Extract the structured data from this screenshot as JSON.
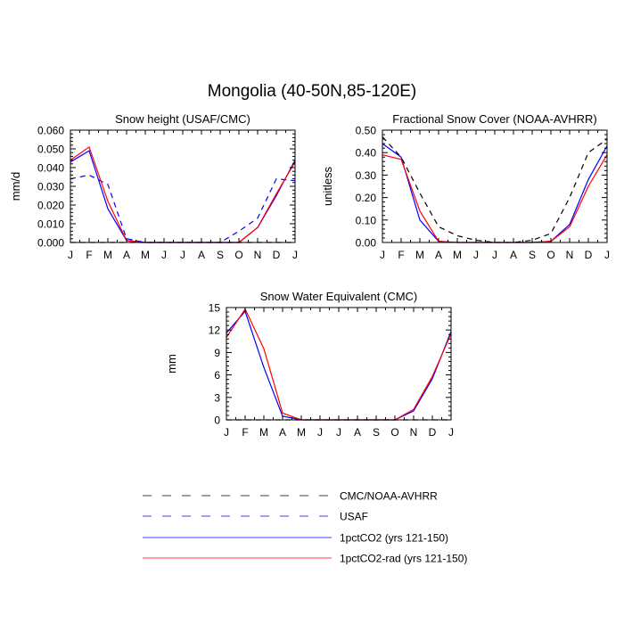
{
  "figure": {
    "title": "Mongolia (40-50N,85-120E)"
  },
  "legend": {
    "items": [
      {
        "label": "CMC/NOAA-AVHRR",
        "color": "#000000",
        "dash": "dashed"
      },
      {
        "label": "USAF",
        "color": "#0000ff",
        "dash": "dashed"
      },
      {
        "label": "1pctCO2 (yrs 121-150)",
        "color": "#0000ff",
        "dash": "solid"
      },
      {
        "label": "1pctCO2-rad (yrs 121-150)",
        "color": "#ff0000",
        "dash": "solid"
      }
    ]
  },
  "chart_data": [
    {
      "type": "line",
      "title": "Snow height (USAF/CMC)",
      "ylabel": "mm/d",
      "xlabel": "",
      "categories": [
        "J",
        "F",
        "M",
        "A",
        "M",
        "J",
        "J",
        "A",
        "S",
        "O",
        "N",
        "D",
        "J"
      ],
      "ylim": [
        0,
        0.06
      ],
      "yticks": [
        "0.000",
        "0.010",
        "0.020",
        "0.030",
        "0.040",
        "0.050",
        "0.060"
      ],
      "grid": false,
      "series": [
        {
          "name": "CMC/NOAA-AVHRR",
          "color": "#000000",
          "dash": "dashed",
          "values": [
            0,
            0,
            0,
            0,
            0,
            0,
            0,
            0,
            0,
            0,
            0,
            0,
            0
          ]
        },
        {
          "name": "USAF",
          "color": "#0000ff",
          "dash": "dashed",
          "values": [
            0.034,
            0.036,
            0.031,
            0.002,
            0.0,
            0.0,
            0.0,
            0.0,
            0.0,
            0.006,
            0.013,
            0.034,
            0.033
          ]
        },
        {
          "name": "1pctCO2 (yrs 121-150)",
          "color": "#0000ff",
          "dash": "solid",
          "values": [
            0.043,
            0.049,
            0.018,
            0.001,
            0.0,
            0.0,
            0.0,
            0.0,
            0.0,
            0.0,
            0.008,
            0.025,
            0.044
          ]
        },
        {
          "name": "1pctCO2-rad (yrs 121-150)",
          "color": "#ff0000",
          "dash": "solid",
          "values": [
            0.044,
            0.051,
            0.022,
            0.001,
            0.0,
            0.0,
            0.0,
            0.0,
            0.0,
            0.0,
            0.008,
            0.026,
            0.043
          ]
        }
      ]
    },
    {
      "type": "line",
      "title": "Fractional Snow Cover (NOAA-AVHRR)",
      "ylabel": "unitless",
      "xlabel": "",
      "categories": [
        "J",
        "F",
        "M",
        "A",
        "M",
        "J",
        "J",
        "A",
        "S",
        "O",
        "N",
        "D",
        "J"
      ],
      "ylim": [
        0,
        0.5
      ],
      "yticks": [
        "0.00",
        "0.10",
        "0.20",
        "0.30",
        "0.40",
        "0.50"
      ],
      "grid": false,
      "series": [
        {
          "name": "CMC/NOAA-AVHRR",
          "color": "#000000",
          "dash": "dashed",
          "values": [
            0.47,
            0.38,
            0.22,
            0.07,
            0.03,
            0.01,
            0.0,
            0.0,
            0.01,
            0.04,
            0.2,
            0.4,
            0.46
          ]
        },
        {
          "name": "1pctCO2 (yrs 121-150)",
          "color": "#0000ff",
          "dash": "solid",
          "values": [
            0.44,
            0.38,
            0.1,
            0.005,
            0.0,
            0.0,
            0.0,
            0.0,
            0.0,
            0.005,
            0.08,
            0.28,
            0.43
          ]
        },
        {
          "name": "1pctCO2-rad (yrs 121-150)",
          "color": "#ff0000",
          "dash": "solid",
          "values": [
            0.39,
            0.37,
            0.14,
            0.005,
            0.0,
            0.0,
            0.0,
            0.0,
            0.0,
            0.005,
            0.07,
            0.25,
            0.39
          ]
        }
      ]
    },
    {
      "type": "line",
      "title": "Snow Water Equivalent (CMC)",
      "ylabel": "mm",
      "xlabel": "",
      "categories": [
        "J",
        "F",
        "M",
        "A",
        "M",
        "J",
        "J",
        "A",
        "S",
        "O",
        "N",
        "D",
        "J"
      ],
      "ylim": [
        0,
        15
      ],
      "yticks": [
        "0",
        "3",
        "6",
        "9",
        "12",
        "15"
      ],
      "grid": false,
      "series": [
        {
          "name": "CMC/NOAA-AVHRR",
          "color": "#000000",
          "dash": "dashed",
          "values": [
            0,
            0,
            0,
            0,
            0,
            0,
            0,
            0,
            0,
            0,
            0,
            0,
            0
          ]
        },
        {
          "name": "1pctCO2 (yrs 121-150)",
          "color": "#0000ff",
          "dash": "solid",
          "values": [
            11.6,
            14.5,
            7.0,
            0.5,
            0.0,
            0.0,
            0.0,
            0.0,
            0.0,
            0.0,
            1.2,
            5.5,
            11.8
          ]
        },
        {
          "name": "1pctCO2-rad (yrs 121-150)",
          "color": "#ff0000",
          "dash": "solid",
          "values": [
            11.0,
            14.8,
            9.5,
            0.9,
            0.0,
            0.0,
            0.0,
            0.0,
            0.0,
            0.0,
            1.4,
            5.8,
            11.5
          ]
        }
      ]
    }
  ]
}
